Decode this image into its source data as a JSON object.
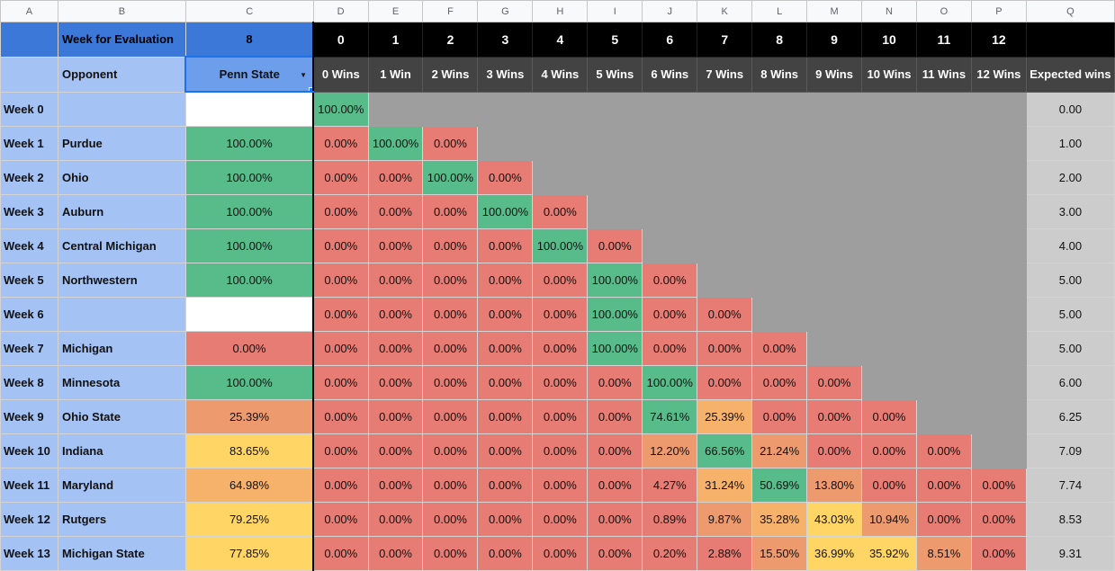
{
  "columns": [
    "A",
    "B",
    "C",
    "D",
    "E",
    "F",
    "G",
    "H",
    "I",
    "J",
    "K",
    "L",
    "M",
    "N",
    "O",
    "P",
    "Q"
  ],
  "header": {
    "week_label": "Week for Evaluation",
    "week_value": "8",
    "win_numbers": [
      "0",
      "1",
      "2",
      "3",
      "4",
      "5",
      "6",
      "7",
      "8",
      "9",
      "10",
      "11",
      "12"
    ],
    "opponent_label": "Opponent",
    "selected_team": "Penn State",
    "win_labels": [
      "0 Wins",
      "1 Win",
      "2 Wins",
      "3 Wins",
      "4 Wins",
      "5 Wins",
      "6 Wins",
      "7 Wins",
      "8 Wins",
      "9 Wins",
      "10 Wins",
      "11 Wins",
      "12 Wins"
    ],
    "expected_label": "Expected wins"
  },
  "colors": {
    "red": "#e67c73",
    "green": "#57bb8a",
    "orange": "#f6b26b",
    "yellow": "#ffd666",
    "salmon": "#ed9a6f",
    "grey": "#9e9e9e",
    "white": "#ffffff"
  },
  "rows": [
    {
      "week": "Week 0",
      "opponent": "",
      "prob": "",
      "prob_color": "white",
      "cells": [
        "100.00%"
      ],
      "cell_colors": [
        "green"
      ],
      "expected": "0.00"
    },
    {
      "week": "Week 1",
      "opponent": "Purdue",
      "prob": "100.00%",
      "prob_color": "green",
      "cells": [
        "0.00%",
        "100.00%",
        "0.00%"
      ],
      "cell_colors": [
        "red",
        "green",
        "red"
      ],
      "expected": "1.00"
    },
    {
      "week": "Week 2",
      "opponent": "Ohio",
      "prob": "100.00%",
      "prob_color": "green",
      "cells": [
        "0.00%",
        "0.00%",
        "100.00%",
        "0.00%"
      ],
      "cell_colors": [
        "red",
        "red",
        "green",
        "red"
      ],
      "expected": "2.00"
    },
    {
      "week": "Week 3",
      "opponent": "Auburn",
      "prob": "100.00%",
      "prob_color": "green",
      "cells": [
        "0.00%",
        "0.00%",
        "0.00%",
        "100.00%",
        "0.00%"
      ],
      "cell_colors": [
        "red",
        "red",
        "red",
        "green",
        "red"
      ],
      "expected": "3.00"
    },
    {
      "week": "Week 4",
      "opponent": "Central Michigan",
      "prob": "100.00%",
      "prob_color": "green",
      "cells": [
        "0.00%",
        "0.00%",
        "0.00%",
        "0.00%",
        "100.00%",
        "0.00%"
      ],
      "cell_colors": [
        "red",
        "red",
        "red",
        "red",
        "green",
        "red"
      ],
      "expected": "4.00"
    },
    {
      "week": "Week 5",
      "opponent": "Northwestern",
      "prob": "100.00%",
      "prob_color": "green",
      "cells": [
        "0.00%",
        "0.00%",
        "0.00%",
        "0.00%",
        "0.00%",
        "100.00%",
        "0.00%"
      ],
      "cell_colors": [
        "red",
        "red",
        "red",
        "red",
        "red",
        "green",
        "red"
      ],
      "expected": "5.00"
    },
    {
      "week": "Week 6",
      "opponent": "",
      "prob": "",
      "prob_color": "white",
      "cells": [
        "0.00%",
        "0.00%",
        "0.00%",
        "0.00%",
        "0.00%",
        "100.00%",
        "0.00%",
        "0.00%"
      ],
      "cell_colors": [
        "red",
        "red",
        "red",
        "red",
        "red",
        "green",
        "red",
        "red"
      ],
      "expected": "5.00"
    },
    {
      "week": "Week 7",
      "opponent": "Michigan",
      "prob": "0.00%",
      "prob_color": "red",
      "cells": [
        "0.00%",
        "0.00%",
        "0.00%",
        "0.00%",
        "0.00%",
        "100.00%",
        "0.00%",
        "0.00%",
        "0.00%"
      ],
      "cell_colors": [
        "red",
        "red",
        "red",
        "red",
        "red",
        "green",
        "red",
        "red",
        "red"
      ],
      "expected": "5.00"
    },
    {
      "week": "Week 8",
      "opponent": "Minnesota",
      "prob": "100.00%",
      "prob_color": "green",
      "cells": [
        "0.00%",
        "0.00%",
        "0.00%",
        "0.00%",
        "0.00%",
        "0.00%",
        "100.00%",
        "0.00%",
        "0.00%",
        "0.00%"
      ],
      "cell_colors": [
        "red",
        "red",
        "red",
        "red",
        "red",
        "red",
        "green",
        "red",
        "red",
        "red"
      ],
      "expected": "6.00"
    },
    {
      "week": "Week 9",
      "opponent": "Ohio State",
      "prob": "25.39%",
      "prob_color": "salmon",
      "cells": [
        "0.00%",
        "0.00%",
        "0.00%",
        "0.00%",
        "0.00%",
        "0.00%",
        "74.61%",
        "25.39%",
        "0.00%",
        "0.00%",
        "0.00%"
      ],
      "cell_colors": [
        "red",
        "red",
        "red",
        "red",
        "red",
        "red",
        "green",
        "orange",
        "red",
        "red",
        "red"
      ],
      "expected": "6.25"
    },
    {
      "week": "Week 10",
      "opponent": "Indiana",
      "prob": "83.65%",
      "prob_color": "yellow",
      "cells": [
        "0.00%",
        "0.00%",
        "0.00%",
        "0.00%",
        "0.00%",
        "0.00%",
        "12.20%",
        "66.56%",
        "21.24%",
        "0.00%",
        "0.00%",
        "0.00%"
      ],
      "cell_colors": [
        "red",
        "red",
        "red",
        "red",
        "red",
        "red",
        "salmon",
        "green",
        "salmon",
        "red",
        "red",
        "red"
      ],
      "expected": "7.09"
    },
    {
      "week": "Week 11",
      "opponent": "Maryland",
      "prob": "64.98%",
      "prob_color": "orange",
      "cells": [
        "0.00%",
        "0.00%",
        "0.00%",
        "0.00%",
        "0.00%",
        "0.00%",
        "4.27%",
        "31.24%",
        "50.69%",
        "13.80%",
        "0.00%",
        "0.00%",
        "0.00%"
      ],
      "cell_colors": [
        "red",
        "red",
        "red",
        "red",
        "red",
        "red",
        "red",
        "orange",
        "green",
        "salmon",
        "red",
        "red",
        "red"
      ],
      "expected": "7.74"
    },
    {
      "week": "Week 12",
      "opponent": "Rutgers",
      "prob": "79.25%",
      "prob_color": "yellow",
      "cells": [
        "0.00%",
        "0.00%",
        "0.00%",
        "0.00%",
        "0.00%",
        "0.00%",
        "0.89%",
        "9.87%",
        "35.28%",
        "43.03%",
        "10.94%",
        "0.00%",
        "0.00%"
      ],
      "cell_colors": [
        "red",
        "red",
        "red",
        "red",
        "red",
        "red",
        "red",
        "salmon",
        "orange",
        "yellow",
        "salmon",
        "red",
        "red"
      ],
      "expected": "8.53"
    },
    {
      "week": "Week 13",
      "opponent": "Michigan State",
      "prob": "77.85%",
      "prob_color": "yellow",
      "cells": [
        "0.00%",
        "0.00%",
        "0.00%",
        "0.00%",
        "0.00%",
        "0.00%",
        "0.20%",
        "2.88%",
        "15.50%",
        "36.99%",
        "35.92%",
        "8.51%",
        "0.00%"
      ],
      "cell_colors": [
        "red",
        "red",
        "red",
        "red",
        "red",
        "red",
        "red",
        "red",
        "salmon",
        "yellow",
        "yellow",
        "salmon",
        "red"
      ],
      "expected": "9.31"
    }
  ]
}
